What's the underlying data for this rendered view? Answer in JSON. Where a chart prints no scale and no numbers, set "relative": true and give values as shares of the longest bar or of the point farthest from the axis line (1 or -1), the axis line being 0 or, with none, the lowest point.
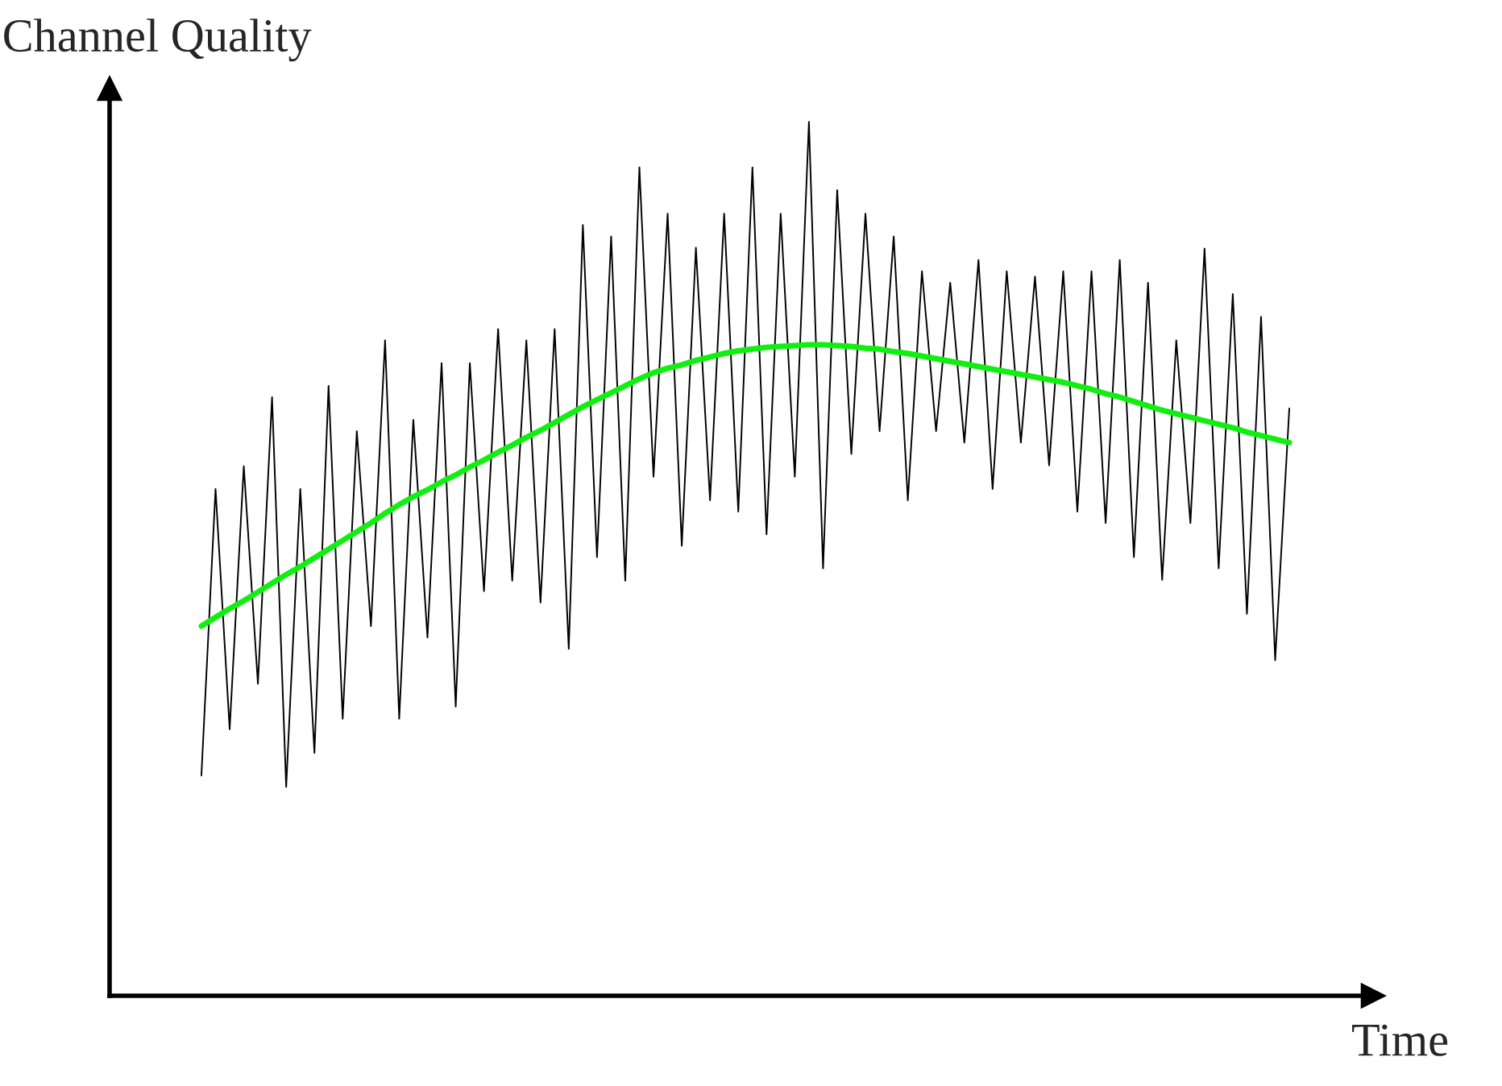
{
  "chart_data": {
    "type": "line",
    "relative": true,
    "xlabel": "Time",
    "ylabel": "Channel Quality",
    "categories": [
      null,
      null,
      null,
      null,
      null,
      null,
      null,
      null,
      null,
      null,
      null,
      null,
      null,
      null,
      null,
      null,
      null,
      null,
      null,
      null,
      null,
      null,
      null,
      null,
      null,
      null,
      null,
      null,
      null,
      null,
      null,
      null,
      null,
      null,
      null,
      null,
      null,
      null,
      null,
      null,
      null,
      null,
      null,
      null,
      null,
      null,
      null,
      null,
      null,
      null,
      null,
      null,
      null,
      null,
      null,
      null,
      null,
      null,
      null,
      null,
      null,
      null,
      null,
      null,
      null,
      null,
      null,
      null,
      null,
      null,
      null,
      null,
      null,
      null,
      null,
      null,
      null,
      null
    ],
    "series": [
      {
        "color": "#000000",
        "values": [
          0.252,
          0.58,
          0.305,
          0.606,
          0.357,
          0.685,
          0.239,
          0.58,
          0.278,
          0.698,
          0.317,
          0.646,
          0.423,
          0.75,
          0.317,
          0.659,
          0.41,
          0.724,
          0.331,
          0.724,
          0.463,
          0.763,
          0.475,
          0.75,
          0.45,
          0.763,
          0.397,
          0.882,
          0.502,
          0.869,
          0.475,
          0.948,
          0.594,
          0.895,
          0.515,
          0.856,
          0.567,
          0.895,
          0.554,
          0.948,
          0.528,
          0.895,
          0.594,
          1.0,
          0.489,
          0.922,
          0.62,
          0.895,
          0.646,
          0.869,
          0.567,
          0.829,
          0.646,
          0.816,
          0.633,
          0.842,
          0.58,
          0.829,
          0.633,
          0.823,
          0.607,
          0.829,
          0.554,
          0.829,
          0.541,
          0.842,
          0.502,
          0.816,
          0.476,
          0.75,
          0.541,
          0.855,
          0.489,
          0.803,
          0.437,
          0.777,
          0.384,
          0.672
        ]
      },
      {
        "color": "#11ee11",
        "values": [
          0.423,
          0.433,
          0.443,
          0.452,
          0.462,
          0.472,
          0.482,
          0.491,
          0.501,
          0.511,
          0.521,
          0.531,
          0.541,
          0.552,
          0.562,
          0.571,
          0.579,
          0.588,
          0.596,
          0.605,
          0.613,
          0.622,
          0.63,
          0.639,
          0.647,
          0.656,
          0.665,
          0.674,
          0.682,
          0.69,
          0.698,
          0.706,
          0.713,
          0.718,
          0.722,
          0.727,
          0.731,
          0.735,
          0.738,
          0.74,
          0.742,
          0.743,
          0.744,
          0.745,
          0.745,
          0.744,
          0.743,
          0.741,
          0.74,
          0.737,
          0.735,
          0.732,
          0.729,
          0.726,
          0.723,
          0.72,
          0.717,
          0.714,
          0.711,
          0.708,
          0.705,
          0.702,
          0.698,
          0.694,
          0.689,
          0.685,
          0.68,
          0.675,
          0.67,
          0.666,
          0.662,
          0.658,
          0.654,
          0.65,
          0.645,
          0.641,
          0.637,
          0.633
        ]
      }
    ]
  }
}
